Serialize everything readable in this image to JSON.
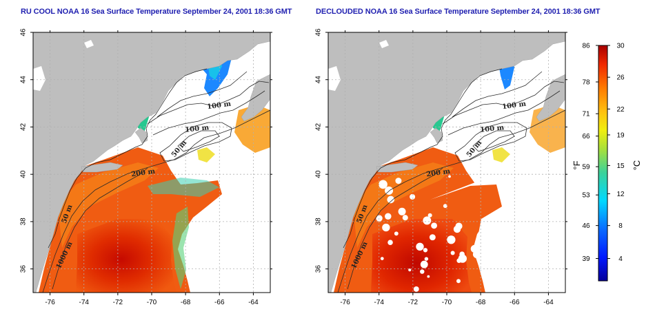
{
  "titles": {
    "left": "RU COOL NOAA 16 Sea Surface Temperature September 24, 2001 18:36 GMT",
    "right": "DECLOUDED NOAA 16 Sea Surface Temperature September 24, 2001 18:36 GMT"
  },
  "map_axes": {
    "lon_ticks": [
      "-76",
      "-74",
      "-72",
      "-70",
      "-68",
      "-66",
      "-64"
    ],
    "lat_ticks": [
      "46",
      "44",
      "42",
      "40",
      "38",
      "36"
    ],
    "lon_range": [
      -77,
      -63
    ],
    "lat_range": [
      35,
      46
    ]
  },
  "isobath_labels": [
    {
      "text": "100 m"
    },
    {
      "text": "100 m"
    },
    {
      "text": "50 m"
    },
    {
      "text": "200 m"
    },
    {
      "text": "50 m"
    },
    {
      "text": "1000 m"
    }
  ],
  "colorbar": {
    "fahrenheit_ticks": [
      "86",
      "78",
      "71",
      "66",
      "59",
      "53",
      "46",
      "39"
    ],
    "celsius_ticks": [
      "30",
      "26",
      "22",
      "19",
      "15",
      "12",
      "8",
      "4"
    ],
    "fahrenheit_unit": "°F",
    "celsius_unit": "°C"
  },
  "colors": {
    "land": "#bebebe",
    "no_data": "#ffffff",
    "title": "#1f1fb0",
    "contour": "#2a2a2a",
    "grid": "#b0b0b0"
  }
}
